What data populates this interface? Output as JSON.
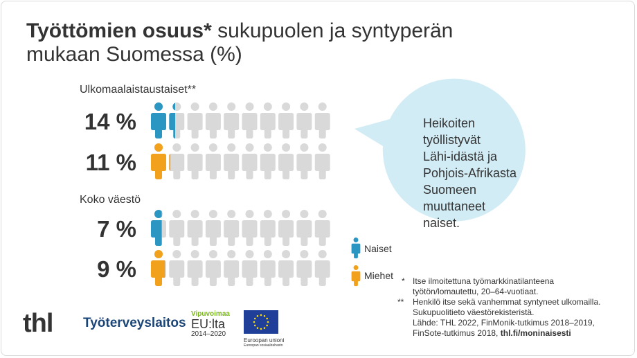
{
  "title": {
    "bold": "Työttömien osuus*",
    "rest_line1": "sukupuolen ja syntyperän",
    "line2": "mukaan Suomessa (%)"
  },
  "sections": [
    {
      "label": "Ulkomaalaistaustaiset**"
    },
    {
      "label": "Koko väestö"
    }
  ],
  "legend": {
    "women": "Naiset",
    "men": "Miehet"
  },
  "bubble": {
    "lines": [
      "Heikoiten",
      "työllistyvät",
      "Lähi-idästä ja",
      "Pohjois-Afrikasta",
      "Suomeen",
      "muuttaneet",
      "naiset."
    ]
  },
  "notes": [
    {
      "mark": "*",
      "lines": [
        "Itse ilmoitettuna työmarkkinatilanteena",
        "työtön/lomautettu, 20–64-vuotiaat."
      ]
    },
    {
      "mark": "**",
      "lines": [
        "Henkilö itse sekä vanhemmat syntyneet ulkomailla.",
        "Sukupuolitieto väestörekisteristä."
      ]
    }
  ],
  "source_lines": [
    "Lähde: THL 2022, FinMonik-tutkimus 2018–2019,",
    "FinSote-tutkimus 2018,"
  ],
  "source_link": "thl.fi/moninaisesti",
  "logos": {
    "thl": "thl",
    "ttl": "Työterveyslaitos",
    "vipu1": "Vipuvoimaa",
    "vipu2": "EU:lta",
    "vipu3": "2014–2020",
    "eu1": "Euroopan unioni",
    "eu2": "Euroopan sosiaalirahasto"
  },
  "colors": {
    "women": "#2c96c3",
    "men": "#f2a11c",
    "grey": "#d9d9d9",
    "bubble": "#d2ecf5"
  },
  "chart_data": {
    "type": "bar",
    "categories": [
      "Ulkomaalaistaustaiset**",
      "Koko väestö"
    ],
    "series": [
      {
        "name": "Naiset",
        "values": [
          14,
          7
        ]
      },
      {
        "name": "Miehet",
        "values": [
          11,
          9
        ]
      }
    ],
    "rows": [
      {
        "group": "Ulkomaalaistaustaiset**",
        "series": "Naiset",
        "value": 14,
        "label": "14 %"
      },
      {
        "group": "Ulkomaalaistaustaiset**",
        "series": "Miehet",
        "value": 11,
        "label": "11 %"
      },
      {
        "group": "Koko väestö",
        "series": "Naiset",
        "value": 7,
        "label": "7 %"
      },
      {
        "group": "Koko väestö",
        "series": "Miehet",
        "value": 9,
        "label": "9 %"
      }
    ],
    "unit": "%",
    "icons_per_row": 10,
    "icon_value": 10,
    "legend_position": "right"
  }
}
